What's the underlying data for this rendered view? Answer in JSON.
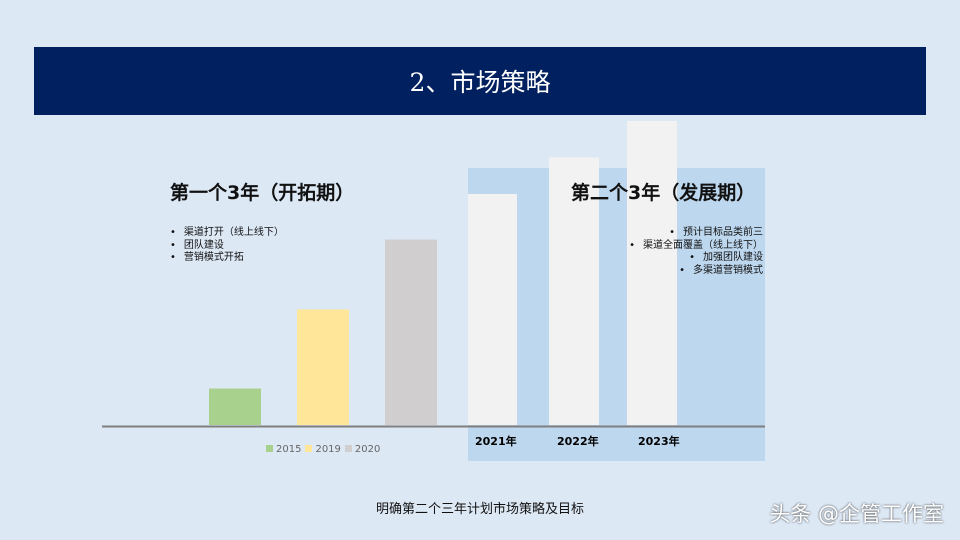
{
  "title": "2、市场策略",
  "phase1": {
    "heading": "第一个3年（开拓期）",
    "items": [
      "渠道打开（线上线下）",
      "团队建设",
      "营销模式开拓"
    ]
  },
  "phase2": {
    "heading": "第二个3年（发展期）",
    "items": [
      "预计目标品类前三",
      "渠道全面覆盖（线上线下）",
      "加强团队建设",
      "多渠道营销模式"
    ]
  },
  "caption": "明确第二个三年计划市场策略及目标",
  "watermark": "头条 @企管工作室",
  "chart_data": {
    "type": "bar",
    "categories": [
      "2015",
      "2019",
      "2020",
      "2021年",
      "2022年",
      "2023年"
    ],
    "values": [
      12,
      38,
      61,
      76,
      88,
      100
    ],
    "colors": [
      "#a9d18e",
      "#ffe699",
      "#d0cece",
      "#f2f2f2",
      "#f2f2f2",
      "#f2f2f2"
    ],
    "legend": [
      "2015",
      "2019",
      "2020"
    ],
    "tick_labels": [
      "2021年",
      "2022年",
      "2023年"
    ],
    "ylim": [
      0,
      100
    ],
    "grid": false,
    "legend_placement": "bottom"
  }
}
